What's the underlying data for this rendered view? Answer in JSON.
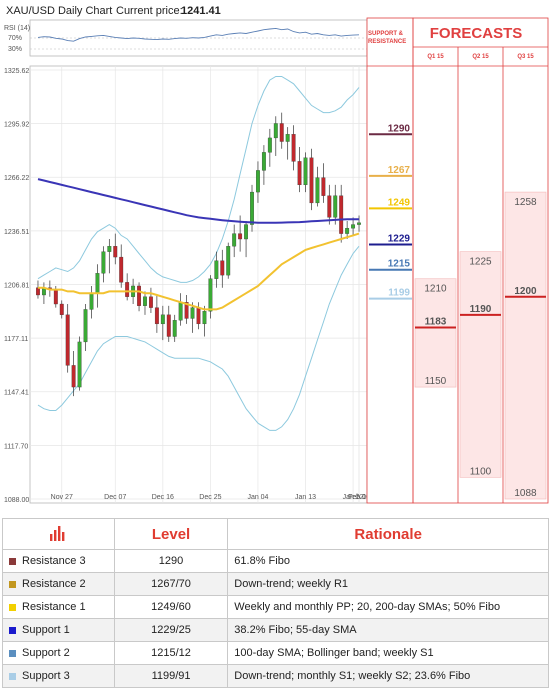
{
  "chart_data": {
    "type": "candlestick",
    "title": "XAU/USD Daily Chart",
    "current_price_label": "Current price:",
    "current_price": "1241.41",
    "rsi_label": "RSI (14)",
    "rsi_ticks": [
      "70%",
      "30%"
    ],
    "y_ticks": [
      "1325.62",
      "1295.92",
      "1266.22",
      "1236.51",
      "1206.81",
      "1177.11",
      "1147.41",
      "1117.70",
      "1088.00"
    ],
    "x_ticks": [
      "Nov 27",
      "Dec 07",
      "Dec 16",
      "Dec 25",
      "Jan 04",
      "Jan 13",
      "Jan 22",
      "Feb 01",
      "Feb 10"
    ],
    "ylim": [
      1088.0,
      1325.62
    ],
    "candles": [
      [
        1205,
        1209,
        1199,
        1201
      ],
      [
        1201,
        1208,
        1196,
        1205
      ],
      [
        1205,
        1209,
        1200,
        1204
      ],
      [
        1204,
        1206,
        1194,
        1196
      ],
      [
        1196,
        1198,
        1188,
        1190
      ],
      [
        1190,
        1196,
        1158,
        1162
      ],
      [
        1162,
        1170,
        1145,
        1150
      ],
      [
        1150,
        1178,
        1148,
        1175
      ],
      [
        1175,
        1196,
        1170,
        1193
      ],
      [
        1193,
        1206,
        1188,
        1202
      ],
      [
        1202,
        1218,
        1194,
        1213
      ],
      [
        1213,
        1228,
        1208,
        1225
      ],
      [
        1225,
        1232,
        1213,
        1228
      ],
      [
        1228,
        1235,
        1218,
        1222
      ],
      [
        1222,
        1229,
        1205,
        1208
      ],
      [
        1208,
        1213,
        1198,
        1200
      ],
      [
        1200,
        1210,
        1196,
        1206
      ],
      [
        1206,
        1208,
        1192,
        1195
      ],
      [
        1195,
        1203,
        1190,
        1200
      ],
      [
        1200,
        1205,
        1191,
        1194
      ],
      [
        1194,
        1201,
        1180,
        1185
      ],
      [
        1185,
        1195,
        1176,
        1190
      ],
      [
        1190,
        1195,
        1175,
        1178
      ],
      [
        1178,
        1190,
        1175,
        1187
      ],
      [
        1187,
        1202,
        1184,
        1197
      ],
      [
        1197,
        1201,
        1185,
        1188
      ],
      [
        1188,
        1197,
        1180,
        1194
      ],
      [
        1194,
        1197,
        1182,
        1185
      ],
      [
        1185,
        1195,
        1178,
        1192
      ],
      [
        1192,
        1212,
        1188,
        1210
      ],
      [
        1210,
        1225,
        1205,
        1220
      ],
      [
        1220,
        1226,
        1205,
        1212
      ],
      [
        1212,
        1230,
        1210,
        1228
      ],
      [
        1228,
        1240,
        1222,
        1235
      ],
      [
        1235,
        1245,
        1225,
        1232
      ],
      [
        1232,
        1242,
        1222,
        1240
      ],
      [
        1240,
        1262,
        1236,
        1258
      ],
      [
        1258,
        1275,
        1252,
        1270
      ],
      [
        1270,
        1284,
        1262,
        1280
      ],
      [
        1280,
        1293,
        1272,
        1288
      ],
      [
        1288,
        1300,
        1278,
        1296
      ],
      [
        1296,
        1302,
        1282,
        1286
      ],
      [
        1286,
        1294,
        1276,
        1290
      ],
      [
        1290,
        1295,
        1270,
        1275
      ],
      [
        1275,
        1283,
        1258,
        1262
      ],
      [
        1262,
        1280,
        1258,
        1277
      ],
      [
        1277,
        1282,
        1248,
        1252
      ],
      [
        1252,
        1272,
        1250,
        1266
      ],
      [
        1266,
        1274,
        1252,
        1256
      ],
      [
        1256,
        1262,
        1240,
        1244
      ],
      [
        1244,
        1262,
        1240,
        1256
      ],
      [
        1256,
        1262,
        1230,
        1235
      ],
      [
        1235,
        1242,
        1232,
        1238
      ],
      [
        1238,
        1244,
        1234,
        1240
      ],
      [
        1240,
        1245,
        1236,
        1241
      ]
    ],
    "sma200": [
      1265.2,
      1264.4,
      1263.6,
      1262.8,
      1262.0,
      1261.2,
      1260.4,
      1259.6,
      1258.8,
      1258.0,
      1257.2,
      1256.4,
      1255.6,
      1254.8,
      1254.0,
      1253.2,
      1252.4,
      1251.6,
      1250.8,
      1250.0,
      1249.2,
      1248.4,
      1247.6,
      1246.8,
      1246.0,
      1245.2,
      1244.6,
      1244.0,
      1243.6,
      1243.2,
      1242.8,
      1242.4,
      1242.1,
      1241.8,
      1241.6,
      1241.4,
      1241.2,
      1241.0,
      1241.0,
      1241.0,
      1241.0,
      1241.1,
      1241.2,
      1241.3,
      1241.4,
      1241.6,
      1241.8,
      1242.0,
      1242.2,
      1242.4,
      1242.6,
      1242.8,
      1243.0,
      1243.0,
      1243.0
    ],
    "sma55": [
      1205,
      1205,
      1204,
      1204,
      1204,
      1203,
      1203,
      1202,
      1202,
      1202,
      1202,
      1202,
      1203,
      1203,
      1203,
      1203,
      1203,
      1203,
      1202,
      1202,
      1201,
      1200,
      1199,
      1198,
      1197,
      1196,
      1195,
      1194,
      1193,
      1193,
      1193,
      1194,
      1196,
      1198,
      1200,
      1202,
      1204,
      1206,
      1209,
      1212,
      1215,
      1218,
      1220,
      1222,
      1224,
      1226,
      1227,
      1228,
      1229,
      1230,
      1231,
      1232,
      1233,
      1234,
      1235
    ],
    "bb_upper": [
      1210,
      1212,
      1214,
      1216,
      1215,
      1214,
      1216,
      1220,
      1226,
      1232,
      1236,
      1238,
      1240,
      1238,
      1234,
      1232,
      1228,
      1224,
      1220,
      1216,
      1213,
      1211,
      1210,
      1209,
      1208,
      1208,
      1209,
      1211,
      1214,
      1218,
      1224,
      1232,
      1242,
      1254,
      1268,
      1282,
      1296,
      1306,
      1314,
      1320,
      1322,
      1322,
      1320,
      1318,
      1314,
      1310,
      1306,
      1304,
      1302,
      1302,
      1303,
      1305,
      1309,
      1312,
      1316
    ],
    "bb_lower": [
      1140,
      1138,
      1137,
      1137,
      1140,
      1144,
      1148,
      1152,
      1158,
      1164,
      1170,
      1174,
      1176,
      1178,
      1178,
      1178,
      1177,
      1176,
      1175,
      1173,
      1171,
      1169,
      1167,
      1166,
      1166,
      1166,
      1166,
      1166,
      1165,
      1164,
      1162,
      1160,
      1156,
      1150,
      1144,
      1138,
      1134,
      1130,
      1128,
      1126,
      1126,
      1128,
      1132,
      1138,
      1146,
      1156,
      1166,
      1176,
      1186,
      1196,
      1204,
      1212,
      1218,
      1224,
      1228
    ],
    "rsi": [
      52,
      54,
      53,
      49,
      47,
      42,
      40,
      48,
      53,
      55,
      57,
      58,
      55,
      52,
      50,
      48,
      50,
      49,
      47,
      46,
      45,
      47,
      46,
      48,
      50,
      49,
      51,
      50,
      52,
      56,
      60,
      58,
      62,
      64,
      66,
      64,
      68,
      72,
      76,
      78,
      80,
      76,
      78,
      70,
      66,
      68,
      62,
      64,
      60,
      58,
      60,
      56,
      58,
      59,
      60
    ],
    "levels": [
      {
        "value": 1290,
        "label": "1290",
        "color": "#6b2a44"
      },
      {
        "value": 1267,
        "label": "1267",
        "color": "#e8b04a"
      },
      {
        "value": 1249,
        "label": "1249",
        "color": "#f2c500"
      },
      {
        "value": 1229,
        "label": "1229",
        "color": "#1d1d8f"
      },
      {
        "value": 1215,
        "label": "1215",
        "color": "#4778b4"
      },
      {
        "value": 1199,
        "label": "1199",
        "color": "#a9cde6"
      }
    ],
    "support_resistance_header": "SUPPORT & RESISTANCE",
    "forecasts": {
      "title": "FORECASTS",
      "quarters": [
        {
          "name": "Q1 15",
          "high": 1210,
          "low": 1150,
          "mid": 1183
        },
        {
          "name": "Q2 15",
          "high": 1225,
          "low": 1100,
          "mid": 1190
        },
        {
          "name": "Q3 15",
          "high": 1258,
          "low": 1088,
          "mid": 1200
        }
      ]
    },
    "colors": {
      "bull": "#3aaa35",
      "bear": "#c0282d",
      "sma200": "#3a35b6",
      "sma55": "#f2c230",
      "bands": "#8dc9de",
      "forecast": "#e04040"
    }
  },
  "table": {
    "headers": {
      "level": "Level",
      "rationale": "Rationale"
    },
    "rows": [
      {
        "name": "Resistance 3",
        "level": "1290",
        "rationale": "61.8% Fibo",
        "swatch": "#8b3a3a"
      },
      {
        "name": "Resistance 2",
        "level": "1267/70",
        "rationale": "Down-trend; weekly R1",
        "swatch": "#c2971f"
      },
      {
        "name": "Resistance 1",
        "level": "1249/60",
        "rationale": "Weekly and monthly PP; 20, 200-day SMAs; 50% Fibo",
        "swatch": "#f2d000"
      },
      {
        "name": "Support 1",
        "level": "1229/25",
        "rationale": "38.2% Fibo; 55-day SMA",
        "swatch": "#1a1acc"
      },
      {
        "name": "Support 2",
        "level": "1215/12",
        "rationale": "100-day SMA; Bollinger band; weekly S1",
        "swatch": "#5b8fc0"
      },
      {
        "name": "Support 3",
        "level": "1199/91",
        "rationale": "Down-trend; monthly S1; weekly S2; 23.6% Fibo",
        "swatch": "#a9cde6"
      }
    ]
  }
}
